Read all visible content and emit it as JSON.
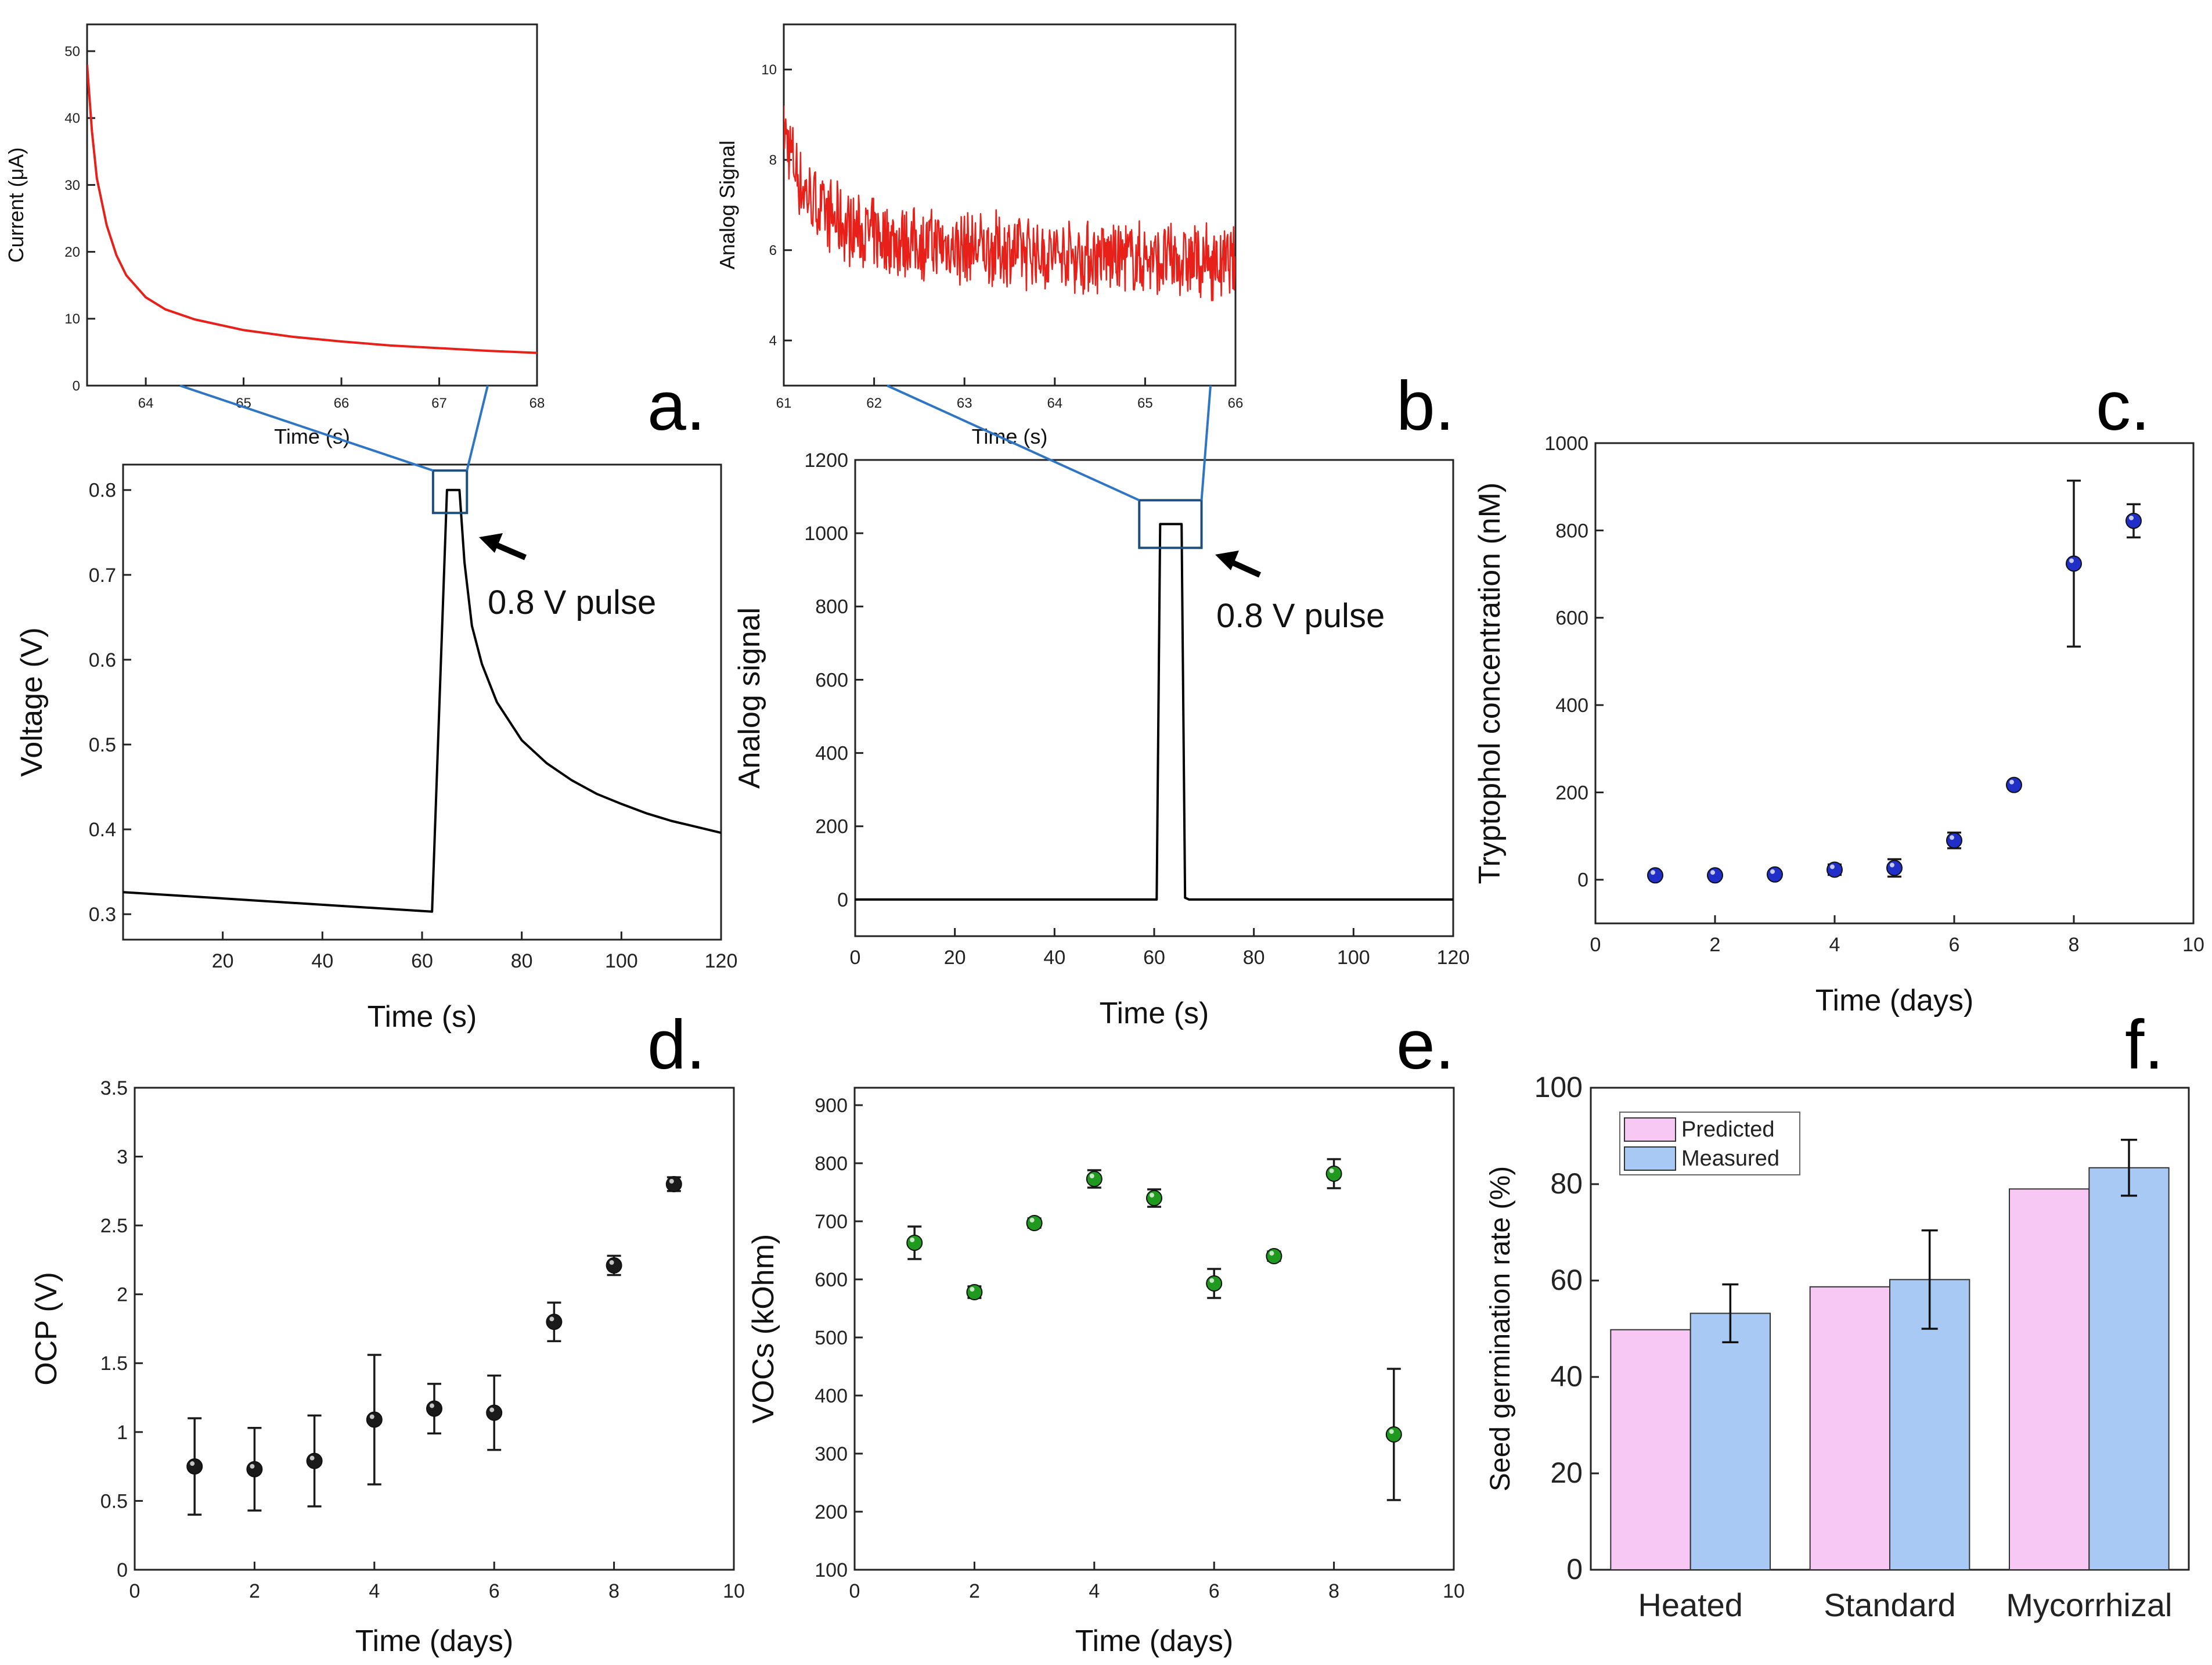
{
  "colors": {
    "axis": "#222222",
    "black_line": "#000000",
    "red_line": "#e8201a",
    "zoom_box": "#1f4e79",
    "zoom_line": "#2e75c4",
    "marker_blue": "#1f2fc8",
    "marker_black": "#1a1a1a",
    "marker_green": "#1f9a1f",
    "bar_predicted": "#f8c8f4",
    "bar_measured": "#a9c9f5"
  },
  "annotations": {
    "pulse_a": "0.8 V pulse",
    "pulse_b": "0.8 V pulse"
  },
  "chart_data": [
    {
      "id": "a-inset",
      "type": "line",
      "title": "",
      "xlabel": "Time (s)",
      "ylabel": "Current (μA)",
      "xlim": [
        63.4,
        68
      ],
      "ylim": [
        0,
        54
      ],
      "xticks": [
        64,
        65,
        66,
        67,
        68
      ],
      "yticks": [
        0,
        10,
        20,
        30,
        40,
        50
      ],
      "series": [
        {
          "name": "Current",
          "color": "#e8201a",
          "x": [
            63.4,
            63.45,
            63.5,
            63.6,
            63.7,
            63.8,
            64.0,
            64.2,
            64.5,
            65.0,
            65.5,
            66.0,
            66.5,
            67.0,
            67.5,
            68.0
          ],
          "y": [
            48,
            38,
            31,
            24,
            19.5,
            16.5,
            13.2,
            11.4,
            9.9,
            8.3,
            7.3,
            6.6,
            6.0,
            5.6,
            5.2,
            4.9
          ]
        }
      ]
    },
    {
      "id": "a",
      "panel": "a.",
      "type": "line",
      "xlabel": "Time (s)",
      "ylabel": "Voltage (V)",
      "xlim": [
        0,
        120
      ],
      "ylim": [
        0.27,
        0.83
      ],
      "xticks": [
        20,
        40,
        60,
        80,
        100,
        120
      ],
      "yticks": [
        0.3,
        0.4,
        0.5,
        0.6,
        0.7,
        0.8
      ],
      "series": [
        {
          "name": "Voltage",
          "color": "#000000",
          "x": [
            0,
            62,
            65,
            67.5,
            68.5,
            70,
            72,
            75,
            80,
            85,
            90,
            95,
            100,
            105,
            110,
            115,
            120
          ],
          "y": [
            0.326,
            0.303,
            0.8,
            0.8,
            0.715,
            0.64,
            0.595,
            0.55,
            0.505,
            0.478,
            0.458,
            0.442,
            0.43,
            0.419,
            0.41,
            0.403,
            0.396
          ]
        }
      ]
    },
    {
      "id": "b-inset",
      "type": "line",
      "xlabel": "Time (s)",
      "ylabel": "Analog Signal",
      "xlim": [
        61,
        66
      ],
      "ylim": [
        3,
        11
      ],
      "xticks": [
        61,
        62,
        63,
        64,
        65,
        66
      ],
      "yticks": [
        4,
        6,
        8,
        10
      ],
      "noise_amplitude": 0.6,
      "series": [
        {
          "name": "Analog Signal",
          "color": "#e8201a",
          "x": [
            61.0,
            61.1,
            61.2,
            61.4,
            61.7,
            62.0,
            62.5,
            63.0,
            63.5,
            64.0,
            64.5,
            65.0,
            65.5,
            66.0
          ],
          "y": [
            8.7,
            8.0,
            7.4,
            6.9,
            6.5,
            6.3,
            6.15,
            6.05,
            6.0,
            5.9,
            5.85,
            5.8,
            5.75,
            5.65
          ]
        }
      ]
    },
    {
      "id": "b",
      "panel": "b.",
      "type": "line",
      "xlabel": "Time (s)",
      "ylabel": "Analog signal",
      "xlim": [
        0,
        120
      ],
      "ylim": [
        -100,
        1200
      ],
      "xticks": [
        0,
        20,
        40,
        60,
        80,
        100,
        120
      ],
      "yticks": [
        0,
        200,
        400,
        600,
        800,
        1000,
        1200
      ],
      "series": [
        {
          "name": "Analog signal",
          "color": "#000000",
          "x": [
            0,
            60.5,
            61.2,
            65.5,
            66.2,
            67,
            120
          ],
          "y": [
            0,
            0,
            1025,
            1025,
            5,
            0,
            0
          ]
        }
      ]
    },
    {
      "id": "c",
      "panel": "c.",
      "type": "scatter",
      "xlabel": "Time (days)",
      "ylabel": "Tryptophol concentration (nM)",
      "xlim": [
        0,
        10
      ],
      "ylim": [
        -100,
        1000
      ],
      "xticks": [
        0,
        2,
        4,
        6,
        8,
        10
      ],
      "yticks": [
        0,
        200,
        400,
        600,
        800,
        1000
      ],
      "marker_color": "#1f2fc8",
      "x": [
        1,
        2,
        3,
        4,
        5,
        6,
        7,
        8,
        9
      ],
      "y": [
        10,
        10,
        12,
        23,
        27,
        90,
        217,
        724,
        822
      ],
      "err": [
        5,
        5,
        6,
        12,
        20,
        18,
        8,
        190,
        38
      ]
    },
    {
      "id": "d",
      "panel": "d.",
      "type": "scatter",
      "xlabel": "Time (days)",
      "ylabel": "OCP (V)",
      "xlim": [
        0,
        10
      ],
      "ylim": [
        0,
        3.5
      ],
      "xticks": [
        0,
        2,
        4,
        6,
        8,
        10
      ],
      "yticks": [
        0,
        0.5,
        1,
        1.5,
        2,
        2.5,
        3,
        3.5
      ],
      "ytick_labels": [
        "0",
        "0.5",
        "1",
        "1.5",
        "2",
        "2.5",
        "3",
        "3.5"
      ],
      "marker_color": "#1a1a1a",
      "x": [
        1,
        2,
        3,
        4,
        5,
        6,
        7,
        8,
        9
      ],
      "y": [
        0.75,
        0.73,
        0.79,
        1.09,
        1.17,
        1.14,
        1.8,
        2.21,
        2.8
      ],
      "err": [
        0.35,
        0.3,
        0.33,
        0.47,
        0.18,
        0.27,
        0.14,
        0.07,
        0.05
      ]
    },
    {
      "id": "e",
      "panel": "e.",
      "type": "scatter",
      "xlabel": "Time (days)",
      "ylabel": "VOCs (kOhm)",
      "xlim": [
        0,
        10
      ],
      "ylim": [
        100,
        930
      ],
      "xticks": [
        0,
        2,
        4,
        6,
        8,
        10
      ],
      "yticks": [
        100,
        200,
        300,
        400,
        500,
        600,
        700,
        800,
        900
      ],
      "marker_color": "#1f9a1f",
      "x": [
        1,
        2,
        3,
        4,
        5,
        6,
        7,
        8,
        9
      ],
      "y": [
        663,
        578,
        697,
        773,
        740,
        593,
        640,
        782,
        333
      ],
      "err": [
        28,
        10,
        8,
        15,
        15,
        25,
        8,
        25,
        113
      ]
    },
    {
      "id": "f",
      "panel": "f.",
      "type": "bar",
      "xlabel": "",
      "ylabel": "Seed germination rate (%)",
      "ylim": [
        0,
        100
      ],
      "yticks": [
        0,
        20,
        40,
        60,
        80,
        100
      ],
      "categories": [
        "Heated",
        "Standard",
        "Mycorrhizal"
      ],
      "legend": "top-left",
      "series": [
        {
          "name": "Predicted",
          "color": "#f8c8f4",
          "values": [
            49.8,
            58.7,
            79.0
          ],
          "err": [
            0,
            0,
            0
          ]
        },
        {
          "name": "Measured",
          "color": "#a9c9f5",
          "values": [
            53.2,
            60.2,
            83.4
          ],
          "err": [
            6.0,
            10.2,
            5.8
          ]
        }
      ]
    }
  ]
}
